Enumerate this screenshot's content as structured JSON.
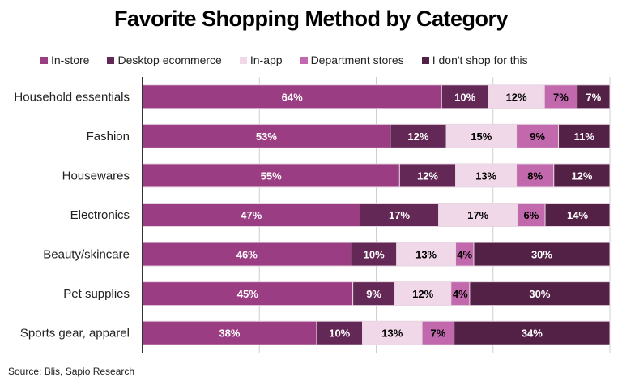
{
  "chart_data": {
    "type": "bar",
    "orientation": "horizontal",
    "stacked": true,
    "title": "Favorite Shopping Method by Category",
    "categories": [
      "Household essentials",
      "Fashion",
      "Housewares",
      "Electronics",
      "Beauty/skincare",
      "Pet supplies",
      "Sports gear, apparel"
    ],
    "series": [
      {
        "name": "In-store",
        "color": "#9b3d82",
        "label_color": "#ffffff",
        "values": [
          64,
          53,
          55,
          47,
          46,
          45,
          38
        ]
      },
      {
        "name": "Desktop ecommerce",
        "color": "#632856",
        "label_color": "#ffffff",
        "values": [
          10,
          12,
          12,
          17,
          10,
          9,
          10
        ]
      },
      {
        "name": "In-app",
        "color": "#f0d8e8",
        "label_color": "#000000",
        "values": [
          12,
          15,
          13,
          17,
          13,
          12,
          13
        ]
      },
      {
        "name": "Department stores",
        "color": "#c169ac",
        "label_color": "#000000",
        "values": [
          7,
          9,
          8,
          6,
          4,
          4,
          7
        ]
      },
      {
        "name": "I don't shop for this",
        "color": "#532046",
        "label_color": "#ffffff",
        "values": [
          7,
          11,
          12,
          14,
          30,
          30,
          34
        ]
      }
    ],
    "xlim": [
      0,
      100
    ],
    "grid": true,
    "legend": "top",
    "source": "Source: Blis, Sapio Research"
  }
}
